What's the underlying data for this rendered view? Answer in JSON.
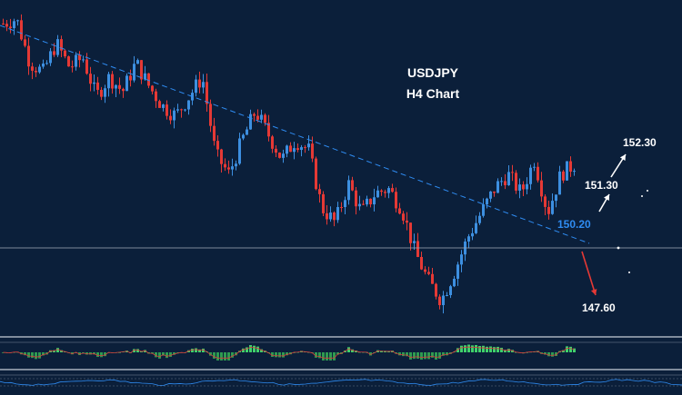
{
  "chart_data": {
    "type": "candlestick",
    "title": "USDJPY",
    "subtitle": "H4 Chart",
    "price_range": [
      146.5,
      153.2
    ],
    "current_level": 150.0,
    "annotations": [
      {
        "label": "152.30",
        "value": 152.3,
        "direction": "up",
        "color": "#ffffff"
      },
      {
        "label": "151.30",
        "value": 151.3,
        "direction": "up",
        "color": "#ffffff"
      },
      {
        "label": "150.20",
        "value": 150.2,
        "direction": "resistance",
        "color": "#2f8cf2"
      },
      {
        "label": "147.60",
        "value": 147.6,
        "direction": "down",
        "color": "#ffffff"
      }
    ],
    "close_path": [
      152.9,
      153.0,
      152.1,
      151.9,
      152.5,
      152.0,
      152.2,
      151.4,
      151.8,
      151.5,
      152.1,
      151.6,
      151.2,
      151.0,
      151.4,
      151.8,
      150.2,
      149.8,
      150.5,
      151.1,
      150.6,
      150.1,
      150.5,
      150.3,
      149.1,
      148.8,
      149.6,
      149.0,
      149.4,
      149.5,
      149.1,
      148.2,
      147.6,
      147.2,
      147.8,
      148.5,
      149.0,
      149.5,
      149.8,
      149.4,
      150.1,
      149.0,
      149.8,
      150.0
    ],
    "colors": {
      "up": "#3d8fe0",
      "down": "#e53935",
      "background": "#0b1f3a",
      "trendline": "#2f8cf2",
      "indicator_up": "#3fd16b",
      "indicator_line": "#d93a3a"
    }
  }
}
